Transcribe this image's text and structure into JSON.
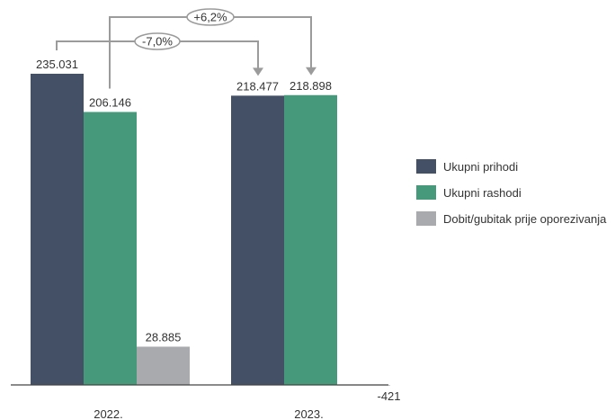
{
  "chart_data": {
    "type": "bar",
    "categories": [
      "2022.",
      "2023."
    ],
    "series": [
      {
        "name": "Ukupni prihodi",
        "color": "#435066",
        "values": [
          235031,
          218477
        ],
        "labels": [
          "235.031",
          "218.477"
        ]
      },
      {
        "name": "Ukupni rashodi",
        "color": "#46997b",
        "values": [
          206146,
          218898
        ],
        "labels": [
          "206.146",
          "218.898"
        ]
      },
      {
        "name": "Dobit/gubitak prije oporezivanja",
        "color": "#a9aaad",
        "values": [
          28885,
          -421
        ],
        "labels": [
          "28.885",
          "-421"
        ]
      }
    ],
    "annotations": [
      {
        "text": "-7,0%",
        "from_series": "Ukupni prihodi",
        "from_category": "2022.",
        "to_category": "2023."
      },
      {
        "text": "+6,2%",
        "from_series": "Ukupni rashodi",
        "from_category": "2022.",
        "to_category": "2023."
      }
    ],
    "ylim": [
      -2000,
      235031
    ],
    "grid": false,
    "legend_position": "right"
  }
}
